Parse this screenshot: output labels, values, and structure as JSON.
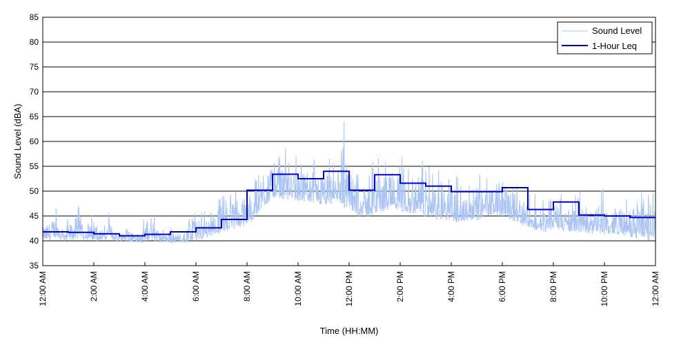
{
  "chart_data": {
    "type": "line",
    "xlabel": "Time (HH:MM)",
    "ylabel": "Sound Level (dBA)",
    "xlim": [
      0,
      24
    ],
    "ylim": [
      35,
      85
    ],
    "y_ticks": [
      35,
      40,
      45,
      50,
      55,
      60,
      65,
      70,
      75,
      80,
      85
    ],
    "x_ticks": [
      {
        "hour": 0,
        "label": "12:00 AM"
      },
      {
        "hour": 2,
        "label": "2:00 AM"
      },
      {
        "hour": 4,
        "label": "4:00 AM"
      },
      {
        "hour": 6,
        "label": "6:00 AM"
      },
      {
        "hour": 8,
        "label": "8:00 AM"
      },
      {
        "hour": 10,
        "label": "10:00 AM"
      },
      {
        "hour": 12,
        "label": "12:00 PM"
      },
      {
        "hour": 14,
        "label": "2:00 PM"
      },
      {
        "hour": 16,
        "label": "4:00 PM"
      },
      {
        "hour": 18,
        "label": "6:00 PM"
      },
      {
        "hour": 20,
        "label": "8:00 PM"
      },
      {
        "hour": 22,
        "label": "10:00 PM"
      },
      {
        "hour": 24,
        "label": "12:00 AM"
      }
    ],
    "grid": "horizontal",
    "legend_position": "top-right",
    "series": [
      {
        "name": "Sound Level",
        "color": "#aac4f4",
        "style": "thin-noisy",
        "x_hours": [
          0,
          0.25,
          0.5,
          0.75,
          1,
          1.25,
          1.5,
          1.75,
          2,
          2.25,
          2.5,
          2.75,
          3,
          3.25,
          3.5,
          3.75,
          4,
          4.25,
          4.5,
          4.75,
          5,
          5.25,
          5.5,
          5.75,
          6,
          6.25,
          6.5,
          6.75,
          7,
          7.25,
          7.5,
          7.75,
          8,
          8.25,
          8.5,
          8.75,
          9,
          9.25,
          9.5,
          9.75,
          10,
          10.25,
          10.5,
          10.75,
          11,
          11.25,
          11.5,
          11.75,
          12,
          12.25,
          12.5,
          12.75,
          13,
          13.25,
          13.5,
          13.75,
          14,
          14.25,
          14.5,
          14.75,
          15,
          15.25,
          15.5,
          15.75,
          16,
          16.25,
          16.5,
          16.75,
          17,
          17.25,
          17.5,
          17.75,
          18,
          18.25,
          18.5,
          18.75,
          19,
          19.25,
          19.5,
          19.75,
          20,
          20.25,
          20.5,
          20.75,
          21,
          21.25,
          21.5,
          21.75,
          22,
          22.25,
          22.5,
          22.75,
          23,
          23.25,
          23.5,
          23.75,
          24
        ],
        "baseline_dBA": [
          40.5,
          40.3,
          40.8,
          40.4,
          40.2,
          40.6,
          40.5,
          40.3,
          40.2,
          40.1,
          40.3,
          40.2,
          40,
          40.1,
          40.2,
          39.9,
          39.9,
          40,
          39.8,
          39.9,
          39.8,
          39.9,
          39.8,
          39.9,
          40,
          40.5,
          41,
          41.5,
          42,
          42.3,
          42.6,
          43,
          43.5,
          44.5,
          46,
          47.5,
          49,
          49,
          48.5,
          48.5,
          48,
          48,
          47.5,
          47.5,
          47,
          47.5,
          48,
          47,
          46,
          45.5,
          45,
          45,
          45.5,
          46,
          46.5,
          47,
          46,
          46,
          45.5,
          45.5,
          45,
          45,
          44.5,
          44.5,
          44,
          44,
          44,
          44.5,
          44.5,
          45,
          45,
          45.5,
          45,
          44.5,
          44,
          43.5,
          43,
          42.5,
          42,
          42,
          42.5,
          42.5,
          42,
          42,
          42,
          41.5,
          41.5,
          41.5,
          41.5,
          41.5,
          41.5,
          41.2,
          41,
          40.8,
          40.5,
          40.3,
          41,
          41.5,
          42
        ],
        "envelope_dBA": [
          44,
          46,
          48,
          44,
          45,
          47,
          48,
          46,
          45,
          44,
          46,
          45,
          42,
          46,
          43,
          42,
          45,
          49,
          44,
          42,
          43,
          42,
          43,
          45,
          49,
          46,
          47,
          48,
          50,
          48,
          52,
          51,
          53,
          55,
          58,
          64,
          57,
          58,
          59,
          58,
          57,
          57,
          56,
          58,
          58,
          57,
          55,
          67,
          57,
          58,
          54,
          55,
          58,
          57,
          58,
          60,
          62,
          56,
          55,
          58,
          56,
          55,
          55,
          56,
          55,
          53,
          54,
          55,
          55,
          54,
          54,
          56,
          57,
          55,
          53,
          52,
          51,
          50,
          49,
          50,
          56,
          50,
          49,
          48,
          51,
          48,
          49,
          50,
          51,
          48,
          52,
          50,
          49,
          50,
          52,
          49,
          50,
          54,
          50
        ]
      },
      {
        "name": "1-Hour Leq",
        "color": "#0000cc",
        "style": "step",
        "hourly_values": [
          41.8,
          41.7,
          41.4,
          41.0,
          41.3,
          41.8,
          42.6,
          44.3,
          50.2,
          53.4,
          52.5,
          54.0,
          50.2,
          53.3,
          51.6,
          51.0,
          49.9,
          49.9,
          50.7,
          46.3,
          47.8,
          45.2,
          45.0,
          44.7
        ]
      }
    ]
  }
}
